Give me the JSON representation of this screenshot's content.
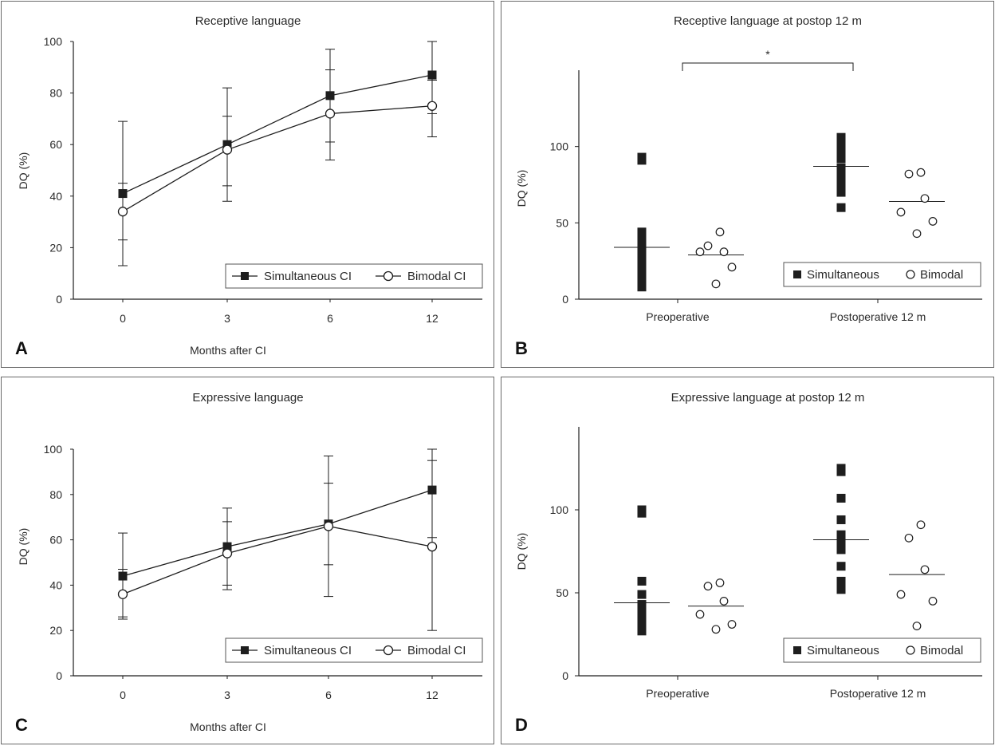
{
  "chart_data": [
    {
      "panel": "A",
      "type": "line",
      "title": "Receptive language",
      "xlabel": "Months after CI",
      "ylabel": "DQ (%)",
      "categories": [
        "0",
        "3",
        "6",
        "12"
      ],
      "ylim": [
        0,
        100
      ],
      "yticks": [
        "0",
        "20",
        "40",
        "60",
        "80",
        "100"
      ],
      "legend_position": "bottom-right",
      "series": [
        {
          "name": "Simultaneous CI",
          "marker": "filled-square",
          "values": [
            41,
            60,
            79,
            87
          ],
          "err_low": [
            23,
            44,
            61,
            72
          ],
          "err_high": [
            69,
            82,
            97,
            100
          ]
        },
        {
          "name": "Bimodal CI",
          "marker": "open-circle",
          "values": [
            34,
            58,
            72,
            75
          ],
          "err_low": [
            13,
            38,
            54,
            63
          ],
          "err_high": [
            45,
            71,
            89,
            85
          ]
        }
      ]
    },
    {
      "panel": "B",
      "type": "scatter",
      "title": "Receptive language at postop 12 m",
      "xlabel": "",
      "ylabel": "DQ (%)",
      "groups": [
        "Preoperative",
        "Postoperative 12 m"
      ],
      "ylim": [
        0,
        150
      ],
      "yticks": [
        "0",
        "50",
        "100"
      ],
      "significance": "*",
      "legend_position": "bottom-right",
      "series": [
        {
          "name": "Simultaneous",
          "marker": "filled-square",
          "group_values": [
            [
              8,
              12,
              16,
              20,
              24,
              28,
              32,
              36,
              40,
              44,
              91,
              93
            ],
            [
              60,
              70,
              74,
              78,
              82,
              86,
              92,
              96,
              101,
              106
            ]
          ],
          "means": [
            34,
            87
          ]
        },
        {
          "name": "Bimodal",
          "marker": "open-circle",
          "group_values": [
            [
              10,
              21,
              31,
              31,
              35,
              44
            ],
            [
              43,
              51,
              57,
              66,
              82,
              83
            ]
          ],
          "means": [
            29,
            64
          ]
        }
      ]
    },
    {
      "panel": "C",
      "type": "line",
      "title": "Expressive language",
      "xlabel": "Months after CI",
      "ylabel": "DQ (%)",
      "categories": [
        "0",
        "3",
        "6",
        "12"
      ],
      "ylim": [
        0,
        100
      ],
      "yticks": [
        "0",
        "20",
        "40",
        "60",
        "80",
        "100"
      ],
      "legend_position": "bottom-right",
      "series": [
        {
          "name": "Simultaneous CI",
          "marker": "filled-square",
          "values": [
            44,
            57,
            67,
            82
          ],
          "err_low": [
            26,
            40,
            49,
            61
          ],
          "err_high": [
            63,
            74,
            85,
            100
          ]
        },
        {
          "name": "Bimodal CI",
          "marker": "open-circle",
          "values": [
            36,
            54,
            66,
            57
          ],
          "err_low": [
            25,
            38,
            35,
            20
          ],
          "err_high": [
            47,
            68,
            97,
            95
          ]
        }
      ]
    },
    {
      "panel": "D",
      "type": "scatter",
      "title": "Expressive language at postop 12 m",
      "xlabel": "",
      "ylabel": "DQ (%)",
      "groups": [
        "Preoperative",
        "Postoperative 12 m"
      ],
      "ylim": [
        0,
        150
      ],
      "yticks": [
        "0",
        "50",
        "100"
      ],
      "legend_position": "bottom-right",
      "series": [
        {
          "name": "Simultaneous",
          "marker": "filled-square",
          "group_values": [
            [
              27,
              31,
              35,
              39,
              43,
              49,
              57,
              98,
              100
            ],
            [
              52,
              57,
              66,
              76,
              80,
              85,
              94,
              107,
              123,
              125
            ]
          ],
          "means": [
            44,
            82
          ]
        },
        {
          "name": "Bimodal",
          "marker": "open-circle",
          "group_values": [
            [
              28,
              31,
              37,
              45,
              54,
              56
            ],
            [
              30,
              45,
              49,
              64,
              83,
              91
            ]
          ],
          "means": [
            42,
            61
          ]
        }
      ]
    }
  ]
}
